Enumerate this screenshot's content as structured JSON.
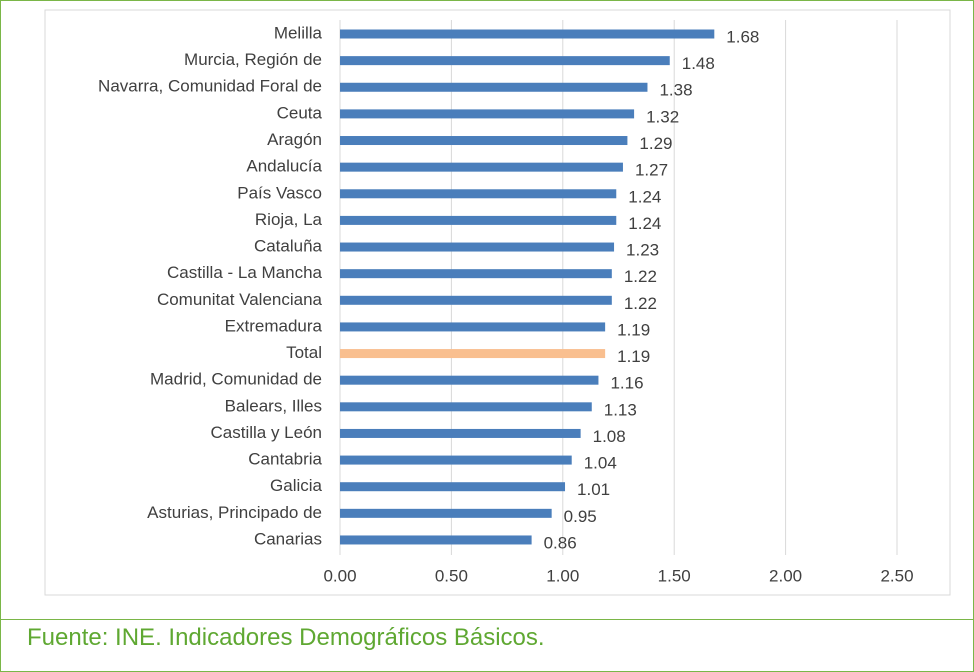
{
  "chart_data": {
    "type": "bar",
    "orientation": "horizontal",
    "categories": [
      "Melilla",
      "Murcia, Región de",
      "Navarra, Comunidad Foral de",
      "Ceuta",
      "Aragón",
      "Andalucía",
      "País Vasco",
      "Rioja, La",
      "Cataluña",
      "Castilla - La Mancha",
      "Comunitat Valenciana",
      "Extremadura",
      "Total",
      "Madrid, Comunidad de",
      "Balears, Illes",
      "Castilla y León",
      "Cantabria",
      "Galicia",
      "Asturias, Principado de",
      "Canarias"
    ],
    "values": [
      1.68,
      1.48,
      1.38,
      1.32,
      1.29,
      1.27,
      1.24,
      1.24,
      1.23,
      1.22,
      1.22,
      1.19,
      1.19,
      1.16,
      1.13,
      1.08,
      1.04,
      1.01,
      0.95,
      0.86
    ],
    "colors": [
      "#4a7ebb",
      "#4a7ebb",
      "#4a7ebb",
      "#4a7ebb",
      "#4a7ebb",
      "#4a7ebb",
      "#4a7ebb",
      "#4a7ebb",
      "#4a7ebb",
      "#4a7ebb",
      "#4a7ebb",
      "#4a7ebb",
      "#f9bf8f",
      "#4a7ebb",
      "#4a7ebb",
      "#4a7ebb",
      "#4a7ebb",
      "#4a7ebb",
      "#4a7ebb",
      "#4a7ebb"
    ],
    "xlim": [
      0,
      2.5
    ],
    "xticks": [
      {
        "value": 0,
        "label": "0.00"
      },
      {
        "value": 0.5,
        "label": "0.50"
      },
      {
        "value": 1,
        "label": "1.00"
      },
      {
        "value": 1.5,
        "label": "1.50"
      },
      {
        "value": 2,
        "label": "2.00"
      },
      {
        "value": 2.5,
        "label": "2.50"
      }
    ],
    "grid": true
  },
  "footer": "Fuente: INE. Indicadores Demográficos Básicos."
}
